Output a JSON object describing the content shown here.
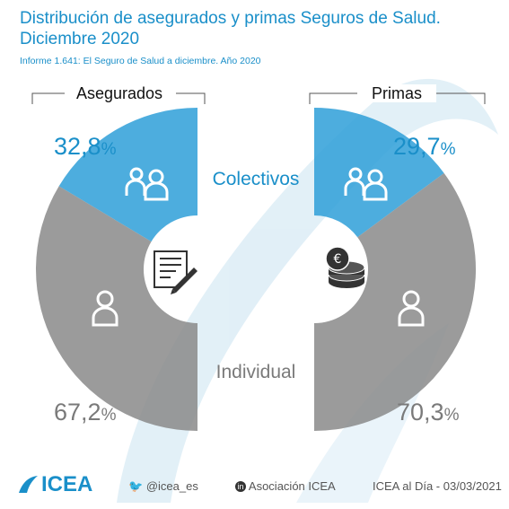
{
  "title": "Distribución de asegurados y primas Seguros de Salud. Diciembre 2020",
  "subtitle": "Informe 1.641: El Seguro de Salud a diciembre. Año 2020",
  "colors": {
    "primary": "#1a8fc9",
    "colectivos": "#2e9fd8",
    "individual": "#8a8a8a",
    "text_gray": "#777777"
  },
  "chart_data": [
    {
      "type": "pie",
      "title": "Asegurados",
      "categories": [
        "Colectivos",
        "Individual"
      ],
      "values": [
        32.8,
        67.2
      ],
      "labels": [
        "32,8",
        "67,2"
      ],
      "unit": "%",
      "icon": "insurance-document-icon"
    },
    {
      "type": "pie",
      "title": "Primas",
      "categories": [
        "Colectivos",
        "Individual"
      ],
      "values": [
        29.7,
        70.3
      ],
      "labels": [
        "29,7",
        "70,3"
      ],
      "unit": "%",
      "icon": "euro-coins-icon"
    }
  ],
  "legend": {
    "colectivos": "Colectivos",
    "individual": "Individual"
  },
  "footer": {
    "logo_text": "ICEA",
    "twitter": "@icea_es",
    "linkedin": "Asociación ICEA",
    "date_text": "ICEA al Día - 03/03/2021"
  }
}
